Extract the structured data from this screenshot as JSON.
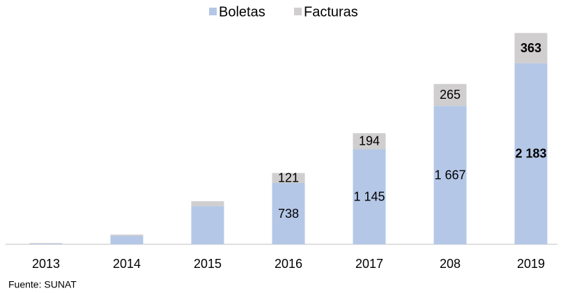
{
  "chart_data": {
    "type": "stacked_bar",
    "categories": [
      "2013",
      "2014",
      "2015",
      "2016",
      "2017",
      "208",
      "2019"
    ],
    "series": [
      {
        "name": "Boletas",
        "color": "#b4c7e7",
        "values": [
          10,
          100,
          460,
          738,
          1145,
          1667,
          2183
        ],
        "value_labels": [
          null,
          null,
          null,
          "738",
          "1 145",
          "1 667",
          "2 183"
        ]
      },
      {
        "name": "Facturas",
        "color": "#d0cece",
        "values": [
          5,
          17,
          59,
          121,
          194,
          265,
          363
        ],
        "value_labels": [
          null,
          null,
          null,
          "121",
          "194",
          "265",
          "363"
        ]
      }
    ],
    "value_label_bold": [
      false,
      false,
      false,
      false,
      false,
      false,
      true
    ],
    "ylim": [
      0,
      2600
    ],
    "legend": "top",
    "source": "Fuente: SUNAT"
  }
}
